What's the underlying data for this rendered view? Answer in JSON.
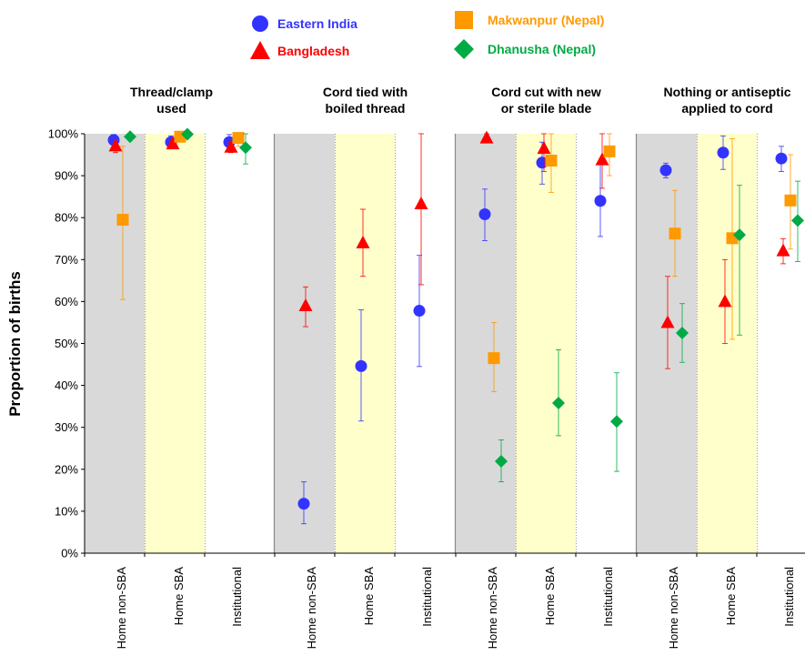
{
  "chart_data": {
    "type": "scatter",
    "ylabel": "Proportion of births",
    "ylim": [
      0,
      100
    ],
    "yticks": [
      "0%",
      "10%",
      "20%",
      "30%",
      "40%",
      "50%",
      "60%",
      "70%",
      "80%",
      "90%",
      "100%"
    ],
    "categories": [
      "Home non-SBA",
      "Home SBA",
      "Institutional"
    ],
    "category_bands": [
      "#d9d9d9",
      "#ffffcc",
      "#ffffff"
    ],
    "legend_placement": "top-center",
    "panels": [
      {
        "title": [
          "Thread/clamp",
          "used"
        ]
      },
      {
        "title": [
          "Cord tied with",
          "boiled thread"
        ]
      },
      {
        "title": [
          "Cord cut with new",
          "or sterile blade"
        ]
      },
      {
        "title": [
          "Nothing or antiseptic",
          "applied to cord"
        ]
      }
    ],
    "series": [
      {
        "name": "Eastern India",
        "color": "#3333ff",
        "marker": "circle",
        "values": [
          [
            98.5,
            98,
            98
          ],
          [
            11.8,
            44.6,
            57.8
          ],
          [
            80.8,
            93.1,
            84
          ],
          [
            91.3,
            95.5,
            94.1
          ]
        ],
        "ci_low": [
          [
            96.5,
            96.5,
            96
          ],
          [
            7,
            31.5,
            44.5
          ],
          [
            74.5,
            88,
            75.5
          ],
          [
            89.5,
            91.5,
            91
          ]
        ],
        "ci_high": [
          [
            99.8,
            99.5,
            99.8
          ],
          [
            17,
            58,
            71
          ],
          [
            86.8,
            98,
            93
          ],
          [
            93,
            99.5,
            97
          ]
        ]
      },
      {
        "name": "Bangladesh",
        "color": "#ff0000",
        "marker": "triangle",
        "values": [
          [
            97.1,
            97.6,
            96.8
          ],
          [
            59,
            74,
            83.3
          ],
          [
            99,
            96.5,
            93.8
          ],
          [
            55,
            60,
            72.1
          ]
        ],
        "ci_low": [
          [
            95.5,
            96.5,
            95.5
          ],
          [
            54,
            66,
            64
          ],
          [
            98,
            91,
            87
          ],
          [
            44,
            50,
            69
          ]
        ],
        "ci_high": [
          [
            98.5,
            98.5,
            98
          ],
          [
            63.5,
            82,
            100
          ],
          [
            100,
            100,
            100
          ],
          [
            66,
            70,
            75
          ]
        ]
      },
      {
        "name": "Makwanpur (Nepal)",
        "color": "#ff9900",
        "marker": "square",
        "values": [
          [
            79.5,
            99.3,
            99
          ],
          [
            null,
            null,
            null
          ],
          [
            46.5,
            93.6,
            95.8
          ],
          [
            76.2,
            75.1,
            84.1
          ]
        ],
        "ci_low": [
          [
            60.5,
            98,
            97
          ],
          [
            null,
            null,
            null
          ],
          [
            38.5,
            86,
            90
          ],
          [
            66,
            51,
            72.5
          ]
        ],
        "ci_high": [
          [
            97,
            100,
            100
          ],
          [
            null,
            null,
            null
          ],
          [
            55,
            100,
            100
          ],
          [
            86.5,
            98.8,
            95
          ]
        ]
      },
      {
        "name": "Dhanusha (Nepal)",
        "color": "#00aa44",
        "marker": "diamond",
        "values": [
          [
            99.3,
            99.9,
            96.7
          ],
          [
            null,
            null,
            null
          ],
          [
            21.9,
            35.8,
            31.4
          ],
          [
            52.5,
            75.9,
            79.3
          ]
        ],
        "ci_low": [
          [
            98.5,
            99.5,
            92.8
          ],
          [
            null,
            null,
            null
          ],
          [
            17,
            28,
            19.5
          ],
          [
            45.5,
            52,
            69.5
          ]
        ],
        "ci_high": [
          [
            100,
            100,
            100
          ],
          [
            null,
            null,
            null
          ],
          [
            27,
            48.5,
            43
          ],
          [
            59.5,
            87.7,
            88.7
          ]
        ]
      }
    ]
  }
}
